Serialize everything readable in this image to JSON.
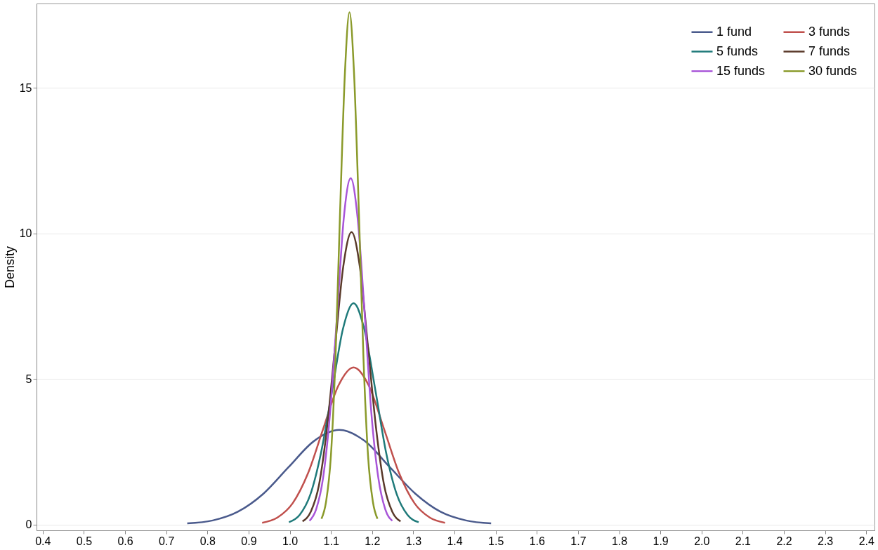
{
  "chart_data": {
    "type": "line",
    "ylabel": "Density",
    "xlim": [
      0.385,
      2.42
    ],
    "xticks": [
      0.4,
      0.5,
      0.6,
      0.7,
      0.8,
      0.9,
      {
        "value": 1,
        "label": "1.0"
      },
      1.1,
      1.2,
      1.3,
      1.4,
      1.5,
      1.6,
      1.7,
      1.8,
      1.9,
      {
        "value": 2,
        "label": "2.0"
      },
      2.1,
      2.2,
      2.3,
      2.4
    ],
    "ylim": [
      -0.2,
      17.9
    ],
    "yticks": [
      0,
      5,
      10,
      15
    ],
    "grid": "y",
    "legend": "top right",
    "series": [
      {
        "name": "1 fund",
        "color": "#4a5a8c",
        "x": [
          0.751,
          0.813,
          0.874,
          0.936,
          0.997,
          1.059,
          1.12,
          1.182,
          1.243,
          1.305,
          1.366,
          1.428,
          1.489
        ],
        "values": [
          0.04,
          0.14,
          0.44,
          1.06,
          1.97,
          2.87,
          3.25,
          2.87,
          1.97,
          1.06,
          0.44,
          0.14,
          0.04
        ]
      },
      {
        "name": "3 funds",
        "color": "#c0504d",
        "x": [
          0.933,
          0.97,
          1.007,
          1.044,
          1.081,
          1.118,
          1.155,
          1.192,
          1.229,
          1.266,
          1.303,
          1.34,
          1.377
        ],
        "values": [
          0.06,
          0.24,
          0.73,
          1.75,
          3.28,
          4.77,
          5.4,
          4.77,
          3.28,
          1.75,
          0.73,
          0.24,
          0.06
        ]
      },
      {
        "name": "5 funds",
        "color": "#1f7a7a",
        "x": [
          0.998,
          1.024,
          1.05,
          1.076,
          1.103,
          1.129,
          1.155,
          1.181,
          1.208,
          1.234,
          1.26,
          1.286,
          1.313
        ],
        "values": [
          0.08,
          0.33,
          1.03,
          2.47,
          4.61,
          6.71,
          7.6,
          6.71,
          4.61,
          2.47,
          1.03,
          0.33,
          0.08
        ]
      },
      {
        "name": "7 funds",
        "color": "#5a3a2a",
        "x": [
          1.031,
          1.051,
          1.071,
          1.09,
          1.11,
          1.13,
          1.15,
          1.17,
          1.19,
          1.21,
          1.229,
          1.249,
          1.269
        ],
        "values": [
          0.11,
          0.44,
          1.36,
          3.26,
          6.1,
          8.87,
          10.05,
          8.87,
          6.1,
          3.26,
          1.36,
          0.44,
          0.11
        ]
      },
      {
        "name": "15 funds",
        "color": "#a855d8",
        "x": [
          1.048,
          1.064,
          1.081,
          1.098,
          1.115,
          1.131,
          1.148,
          1.165,
          1.182,
          1.198,
          1.215,
          1.232,
          1.249
        ],
        "values": [
          0.13,
          0.52,
          1.61,
          3.86,
          7.22,
          10.5,
          11.9,
          10.5,
          7.22,
          3.86,
          1.61,
          0.52,
          0.13
        ]
      },
      {
        "name": "30 funds",
        "color": "#8a9a2a",
        "x": [
          1.077,
          1.088,
          1.1,
          1.111,
          1.122,
          1.134,
          1.145,
          1.156,
          1.168,
          1.179,
          1.19,
          1.202,
          1.213
        ],
        "values": [
          0.2,
          0.77,
          2.38,
          5.71,
          10.67,
          15.53,
          17.6,
          15.53,
          10.67,
          5.71,
          2.38,
          0.77,
          0.2
        ]
      }
    ]
  }
}
